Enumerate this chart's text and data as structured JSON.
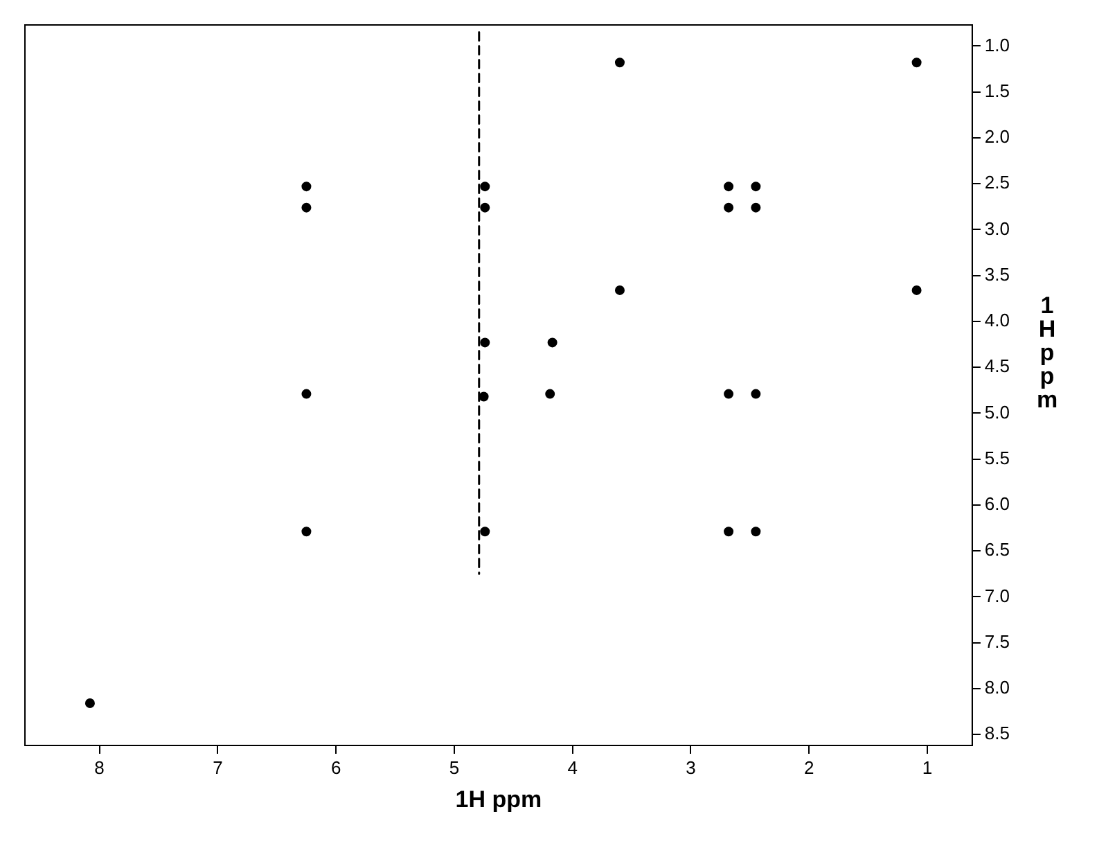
{
  "chart_data": {
    "type": "scatter",
    "xlabel": "1H ppm",
    "ylabel": "1H ppm",
    "xlim": [
      8.63,
      0.62
    ],
    "xticks": [
      8,
      7,
      6,
      5,
      4,
      3,
      2,
      1
    ],
    "ylim": [
      8.62,
      0.77
    ],
    "yticks": [
      {
        "value": 1,
        "label": "1.0"
      },
      {
        "value": 1.5,
        "label": "1.5"
      },
      {
        "value": 2,
        "label": "2.0"
      },
      {
        "value": 2.5,
        "label": "2.5"
      },
      {
        "value": 3,
        "label": "3.0"
      },
      {
        "value": 3.5,
        "label": "3.5"
      },
      {
        "value": 4,
        "label": "4.0"
      },
      {
        "value": 4.5,
        "label": "4.5"
      },
      {
        "value": 5,
        "label": "5.0"
      },
      {
        "value": 5.5,
        "label": "5.5"
      },
      {
        "value": 6,
        "label": "6.0"
      },
      {
        "value": 6.5,
        "label": "6.5"
      },
      {
        "value": 7,
        "label": "7.0"
      },
      {
        "value": 7.5,
        "label": "7.5"
      },
      {
        "value": 8,
        "label": "8.0"
      },
      {
        "value": 8.5,
        "label": "8.5"
      }
    ],
    "series": [
      {
        "color": "#000000",
        "marker": "circle",
        "x": [
          6.25,
          6.25,
          6.25,
          6.25,
          4.74,
          4.74,
          4.74,
          4.74,
          4.75,
          4.17,
          4.19,
          3.6,
          3.6,
          2.68,
          2.68,
          2.68,
          2.68,
          2.45,
          2.45,
          2.45,
          2.45,
          1.09,
          1.09,
          8.08
        ],
        "values": [
          2.53,
          2.76,
          4.79,
          6.29,
          2.53,
          2.76,
          4.23,
          6.29,
          4.82,
          4.23,
          4.79,
          1.18,
          3.66,
          2.53,
          2.76,
          4.79,
          6.29,
          2.53,
          2.76,
          4.79,
          6.29,
          1.18,
          3.66,
          8.16
        ]
      },
      {
        "type": "line",
        "color": "#000000",
        "marker": "none",
        "line_style": "dashed",
        "x": [
          4.79,
          4.79
        ],
        "values": [
          0.85,
          6.75
        ]
      }
    ]
  }
}
